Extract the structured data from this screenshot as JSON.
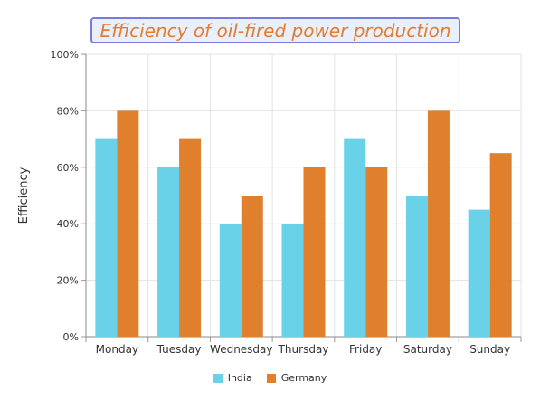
{
  "chart_data": {
    "type": "bar",
    "title": "Efficiency of oil-fired power production",
    "ylabel": "Efficiency",
    "xlabel": "",
    "categories": [
      "Monday",
      "Tuesday",
      "Wednesday",
      "Thursday",
      "Friday",
      "Saturday",
      "Sunday"
    ],
    "series": [
      {
        "name": "India",
        "color": "#6ad2e8",
        "values": [
          70,
          60,
          40,
          40,
          70,
          50,
          45
        ]
      },
      {
        "name": "Germany",
        "color": "#e07f2c",
        "values": [
          80,
          70,
          50,
          60,
          60,
          80,
          65
        ]
      }
    ],
    "ylim": [
      0,
      100
    ],
    "yticks": [
      "0%",
      "20%",
      "40%",
      "60%",
      "80%",
      "100%"
    ],
    "grid": true,
    "legend_position": "bottom"
  }
}
